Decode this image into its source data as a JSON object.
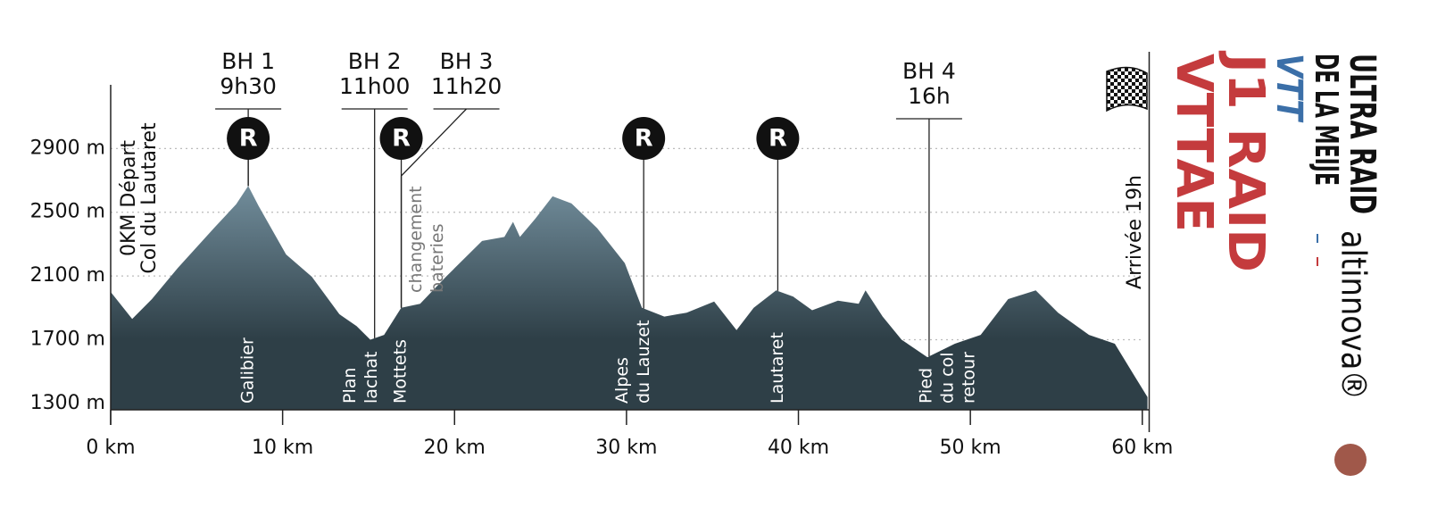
{
  "chart_data": {
    "type": "area",
    "x": [
      0,
      1.25,
      2.4,
      3.9,
      6.0,
      7.3,
      8.0,
      8.6,
      10.2,
      11.7,
      13.3,
      14.3,
      15.1,
      15.9,
      16.9,
      18.0,
      19.5,
      21.6,
      22.9,
      23.4,
      23.8,
      24.7,
      25.7,
      26.8,
      28.3,
      29.9,
      30.9,
      32.2,
      33.5,
      35.1,
      36.4,
      37.4,
      38.7,
      39.7,
      40.8,
      42.3,
      43.5,
      43.9,
      44.9,
      46.0,
      47.5,
      49.1,
      50.6,
      52.2,
      53.8,
      55.1,
      56.9,
      58.4,
      59.5,
      60.3
    ],
    "values": [
      2000,
      1830,
      1955,
      2150,
      2400,
      2550,
      2665,
      2540,
      2235,
      2095,
      1860,
      1785,
      1700,
      1730,
      1900,
      1925,
      2095,
      2320,
      2345,
      2440,
      2345,
      2460,
      2600,
      2555,
      2400,
      2180,
      1900,
      1845,
      1870,
      1940,
      1760,
      1900,
      2010,
      1970,
      1885,
      1945,
      1925,
      2010,
      1845,
      1700,
      1590,
      1675,
      1730,
      1955,
      2010,
      1870,
      1730,
      1675,
      1480,
      1340
    ],
    "xlim": [
      0,
      60.4
    ],
    "ylim": [
      1260,
      3300
    ],
    "xticks": [
      {
        "value": 0,
        "label": "0 km"
      },
      {
        "value": 10,
        "label": "10 km"
      },
      {
        "value": 20,
        "label": "20 km"
      },
      {
        "value": 30,
        "label": "30 km"
      },
      {
        "value": 40,
        "label": "40 km"
      },
      {
        "value": 50,
        "label": "50 km"
      },
      {
        "value": 60,
        "label": "60 km"
      }
    ],
    "yticks": [
      {
        "value": 1300,
        "label": "1300 m"
      },
      {
        "value": 1700,
        "label": "1700 m"
      },
      {
        "value": 2100,
        "label": "2100 m"
      },
      {
        "value": 2500,
        "label": "2500 m"
      },
      {
        "value": 2900,
        "label": "2900 m"
      }
    ],
    "grid": true,
    "gradient": [
      "#6f8a98",
      "#2e3f47"
    ],
    "start_label": [
      "0KM Départ",
      "Col du Lautaret"
    ],
    "finish_label": "Arrivée 19h",
    "checkpoints": [
      {
        "label": "BH 1",
        "time": "9h30",
        "x": 8.0
      },
      {
        "label": "BH 2",
        "time": "11h00",
        "x": 15.35
      },
      {
        "label": "BH 3",
        "time": "11h20",
        "x": 16.9
      },
      {
        "label": "BH 4",
        "time": "16h",
        "x": 47.6
      }
    ],
    "refuel": [
      {
        "label": "R",
        "x": 8.0
      },
      {
        "label": "R",
        "x": 16.9
      },
      {
        "label": "R",
        "x": 31.0
      },
      {
        "label": "R",
        "x": 38.8
      }
    ],
    "places": [
      {
        "x": 8.0,
        "lines": [
          "Galibier"
        ]
      },
      {
        "x": 14.55,
        "lines": [
          "Plan",
          "lachat"
        ]
      },
      {
        "x": 16.87,
        "lines": [
          "Mottets"
        ]
      },
      {
        "x": 30.4,
        "lines": [
          "Alpes",
          "du Lauzet"
        ]
      },
      {
        "x": 38.8,
        "lines": [
          "Lautaret"
        ]
      },
      {
        "x": 48.7,
        "lines": [
          "Pied",
          "du col",
          "retour"
        ]
      }
    ],
    "note": {
      "x": 18.4,
      "lines": [
        "changement",
        "bateries"
      ]
    }
  },
  "branding": {
    "ultra": "ULTRA RAID",
    "meije": "DE LA MEIJE",
    "vtt": "VTT",
    "raid": "J1 RAID",
    "vttae": "VTTAE",
    "sponsor": "altinnova®"
  }
}
